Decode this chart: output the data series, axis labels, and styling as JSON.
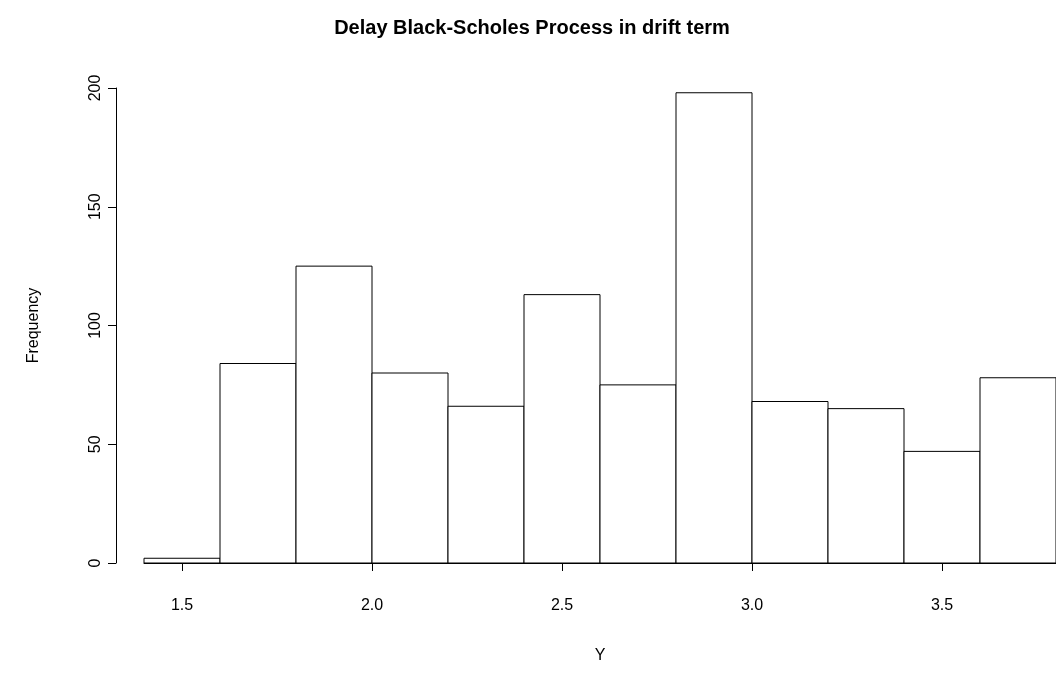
{
  "chart_data": {
    "type": "histogram",
    "title": "Delay Black-Scholes Process in drift term",
    "xlabel": "Y",
    "ylabel": "Frequency",
    "bins": [
      1.4,
      1.6,
      1.8,
      2.0,
      2.2,
      2.4,
      2.6,
      2.8,
      3.0,
      3.2,
      3.4,
      3.6,
      3.8
    ],
    "values": [
      2,
      84,
      125,
      80,
      66,
      113,
      75,
      198,
      68,
      65,
      47,
      78
    ],
    "color": "#ffffff",
    "xlim": [
      1.4,
      3.8
    ],
    "xticks": [
      1.5,
      {
        "value": 2,
        "label": "2.0"
      },
      2.5,
      {
        "value": 3,
        "label": "3.0"
      },
      3.5
    ],
    "ylim": [
      0,
      200
    ],
    "yticks": [
      0,
      50,
      100,
      150,
      200
    ],
    "grid": false
  }
}
